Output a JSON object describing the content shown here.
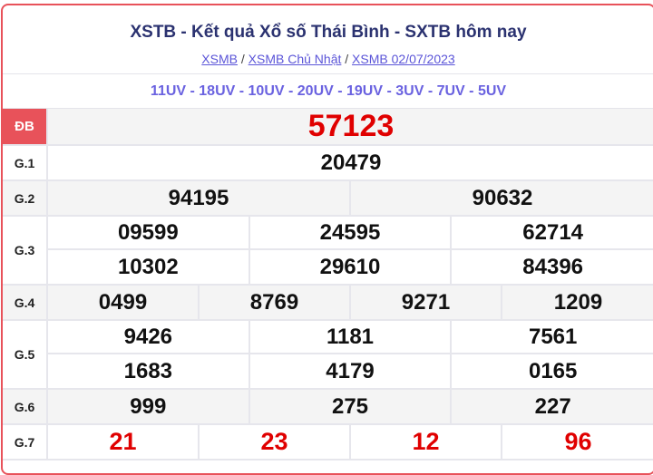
{
  "header": {
    "title": "XSTB - Kết quả Xổ số Thái Bình - SXTB hôm nay",
    "breadcrumbs": [
      "XSMB",
      "XSMB Chủ Nhật",
      "XSMB 02/07/2023"
    ],
    "separator": "/"
  },
  "codes": "11UV - 18UV - 10UV - 20UV - 19UV - 3UV - 7UV - 5UV",
  "prizes": [
    {
      "label": "ĐB",
      "numbers": [
        "57123"
      ]
    },
    {
      "label": "G.1",
      "numbers": [
        "20479"
      ]
    },
    {
      "label": "G.2",
      "numbers": [
        "94195",
        "90632"
      ]
    },
    {
      "label": "G.3",
      "numbers": [
        "09599",
        "24595",
        "62714",
        "10302",
        "29610",
        "84396"
      ]
    },
    {
      "label": "G.4",
      "numbers": [
        "0499",
        "8769",
        "9271",
        "1209"
      ]
    },
    {
      "label": "G.5",
      "numbers": [
        "9426",
        "1181",
        "7561",
        "1683",
        "4179",
        "0165"
      ]
    },
    {
      "label": "G.6",
      "numbers": [
        "999",
        "275",
        "227"
      ]
    },
    {
      "label": "G.7",
      "numbers": [
        "21",
        "23",
        "12",
        "96"
      ]
    }
  ],
  "colors": {
    "accent": "#e8525a",
    "highlight": "#e00000",
    "title": "#2b3270",
    "codes": "#6a62e0"
  }
}
